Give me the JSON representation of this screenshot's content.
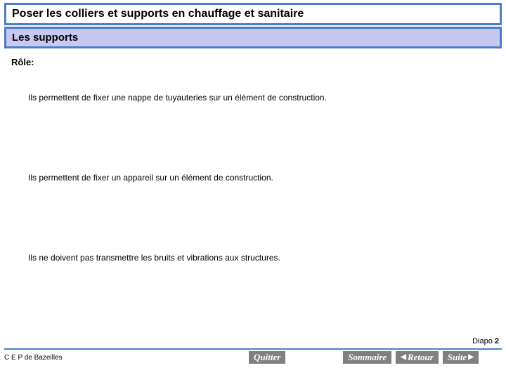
{
  "header": {
    "title": "Poser les colliers et supports en chauffage et sanitaire",
    "subtitle": "Les supports"
  },
  "content": {
    "role_label": "Rôle:",
    "paragraphs": [
      "Ils permettent de fixer une nappe de tuyauteries sur un élément de construction.",
      "Ils permettent de fixer un appareil sur un élément de construction.",
      "Ils ne doivent pas transmettre les bruits et vibrations aux structures."
    ]
  },
  "footer": {
    "diapo_label": "Diapo ",
    "diapo_number": "2",
    "credit": "C E P de Bazeilles",
    "buttons": {
      "quit": "Quitter",
      "summary": "Sommaire",
      "back": "Retour",
      "next": "Suite"
    }
  },
  "style": {
    "accent_border": "#4a7ec8",
    "subtitle_bg": "#c8c8f0",
    "button_bg": "#808080",
    "button_fg": "#ffffff",
    "body_bg": "#ffffff"
  }
}
